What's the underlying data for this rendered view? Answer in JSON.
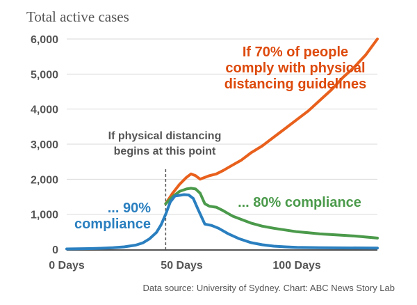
{
  "chart_data": {
    "type": "line",
    "title": "Total active cases",
    "xlabel": "",
    "ylabel": "",
    "xlim": [
      0,
      135
    ],
    "ylim": [
      0,
      6000
    ],
    "grid": true,
    "x_ticks": [
      0,
      50,
      100
    ],
    "x_tick_labels": [
      "0 Days",
      "50 Days",
      "100 Days"
    ],
    "y_ticks": [
      0,
      1000,
      2000,
      3000,
      4000,
      5000,
      6000
    ],
    "y_tick_labels": [
      "0",
      "1,000",
      "2,000",
      "3,000",
      "4,000",
      "5,000",
      "6,000"
    ],
    "annotation": {
      "lines": [
        "If physical distancing",
        "begins at this point"
      ],
      "x": 43
    },
    "series": [
      {
        "key": "70",
        "color": "#e8601c",
        "label_lines": [
          "If 70% of people",
          "comply with physical",
          "distancing guidelines"
        ],
        "x": [
          43,
          46,
          49,
          52,
          54,
          56,
          58,
          60,
          62,
          65,
          68,
          72,
          76,
          80,
          85,
          90,
          95,
          100,
          105,
          110,
          115,
          120,
          125,
          130,
          135
        ],
        "y": [
          1300,
          1600,
          1850,
          2050,
          2150,
          2100,
          2000,
          2050,
          2100,
          2150,
          2250,
          2400,
          2550,
          2750,
          2950,
          3200,
          3450,
          3700,
          3950,
          4250,
          4550,
          4900,
          5200,
          5550,
          6000
        ]
      },
      {
        "key": "80",
        "color": "#4b9a4b",
        "label_lines": [
          "... 80% compliance"
        ],
        "x": [
          43,
          46,
          49,
          52,
          54,
          56,
          58,
          60,
          62,
          65,
          68,
          72,
          76,
          80,
          85,
          90,
          95,
          100,
          105,
          110,
          115,
          120,
          125,
          130,
          135
        ],
        "y": [
          1300,
          1500,
          1650,
          1720,
          1740,
          1720,
          1600,
          1300,
          1230,
          1200,
          1100,
          950,
          850,
          750,
          660,
          600,
          550,
          500,
          470,
          440,
          420,
          400,
          380,
          350,
          320
        ]
      },
      {
        "key": "90",
        "color": "#2a7fbf",
        "label_lines": [
          "... 90%",
          "compliance"
        ],
        "x": [
          0,
          5,
          10,
          15,
          20,
          25,
          30,
          33,
          36,
          39,
          41,
          43,
          45,
          47,
          49,
          51,
          53,
          55,
          57,
          60,
          63,
          66,
          70,
          75,
          80,
          85,
          90,
          95,
          100,
          110,
          120,
          135
        ],
        "y": [
          10,
          15,
          20,
          30,
          45,
          70,
          120,
          180,
          300,
          480,
          700,
          1000,
          1350,
          1520,
          1540,
          1560,
          1550,
          1450,
          1150,
          720,
          680,
          600,
          450,
          300,
          190,
          130,
          90,
          70,
          55,
          45,
          40,
          35
        ]
      }
    ]
  },
  "source": "Data source: University of Sydney. Chart: ABC News Story Lab"
}
